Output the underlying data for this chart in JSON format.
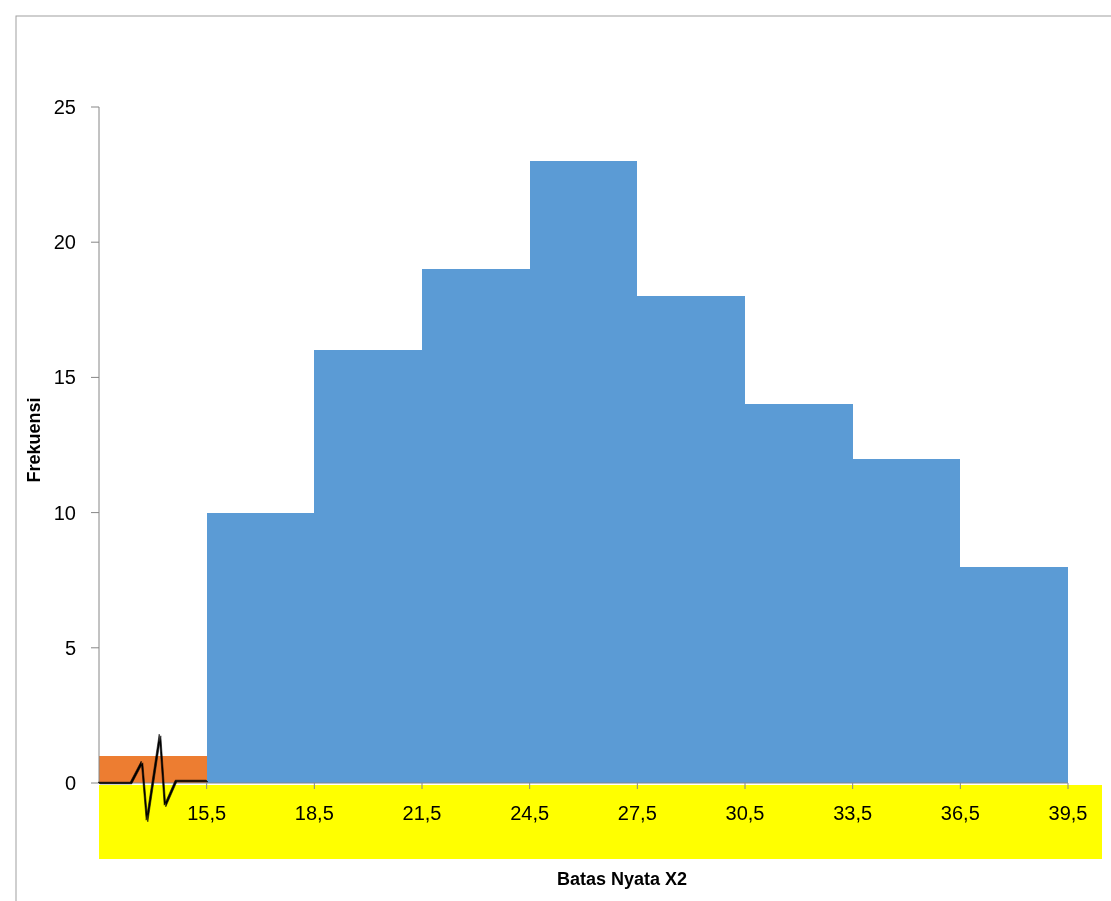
{
  "chart_data": {
    "type": "histogram",
    "xlabel": "Batas Nyata X2",
    "ylabel": "Frekuensi",
    "bins": [
      12.5,
      15.5,
      18.5,
      21.5,
      24.5,
      27.5,
      30.5,
      33.5,
      36.5,
      39.5
    ],
    "values": [
      1,
      10,
      16,
      19,
      23,
      18,
      14,
      12,
      8
    ],
    "colors": [
      "#ed7d31",
      "#5b9bd5",
      "#5b9bd5",
      "#5b9bd5",
      "#5b9bd5",
      "#5b9bd5",
      "#5b9bd5",
      "#5b9bd5",
      "#5b9bd5"
    ],
    "xlim": [
      12.5,
      39.5
    ],
    "xticks": [
      {
        "value": 15.5,
        "label": "15,5"
      },
      {
        "value": 18.5,
        "label": "18,5"
      },
      {
        "value": 21.5,
        "label": "21,5"
      },
      {
        "value": 24.5,
        "label": "24,5"
      },
      {
        "value": 27.5,
        "label": "27,5"
      },
      {
        "value": 30.5,
        "label": "30,5"
      },
      {
        "value": 33.5,
        "label": "33,5"
      },
      {
        "value": 36.5,
        "label": "36,5"
      },
      {
        "value": 39.5,
        "label": "39,5"
      }
    ],
    "ylim": [
      0,
      25
    ],
    "yticks": [
      0,
      5,
      10,
      15,
      20,
      25
    ],
    "grid": false
  }
}
